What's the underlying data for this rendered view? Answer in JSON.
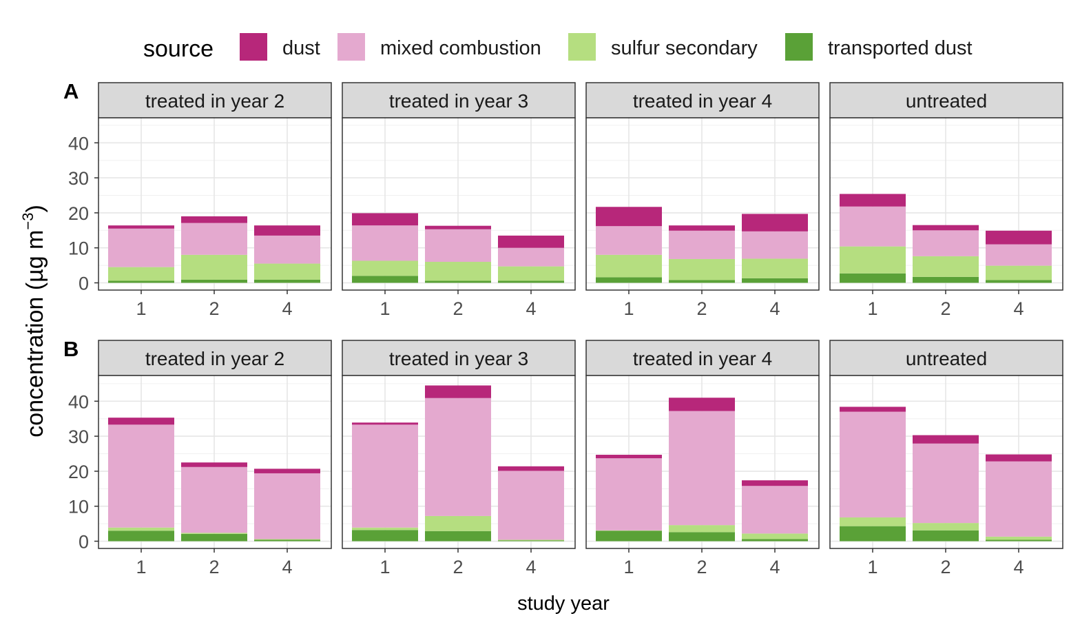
{
  "legend": {
    "title": "source",
    "items": [
      {
        "label": "dust",
        "color": "#b7277a"
      },
      {
        "label": "mixed combustion",
        "color": "#e4a9cf"
      },
      {
        "label": "sulfur secondary",
        "color": "#b5de80"
      },
      {
        "label": "transported dust",
        "color": "#5aa137"
      }
    ]
  },
  "xlabel": "study year",
  "ylabel_main": "concentration (µg m",
  "ylabel_sup": "−3",
  "ylabel_close": ")",
  "chart_data": [
    {
      "type": "bar",
      "stacked": true,
      "row_label": "A",
      "ylim": [
        0,
        45
      ],
      "yticks": [
        0,
        10,
        20,
        30,
        40
      ],
      "xlabel": "study year",
      "categories": [
        "1",
        "2",
        "4"
      ],
      "panels": [
        {
          "title": "treated in year 2",
          "series": [
            {
              "name": "transported dust",
              "values": [
                0.6,
                0.9,
                0.9
              ]
            },
            {
              "name": "sulfur secondary",
              "values": [
                3.9,
                7.1,
                4.6
              ]
            },
            {
              "name": "mixed combustion",
              "values": [
                11.0,
                9.1,
                8.0
              ]
            },
            {
              "name": "dust",
              "values": [
                0.9,
                1.9,
                2.9
              ]
            }
          ]
        },
        {
          "title": "treated in year 3",
          "series": [
            {
              "name": "transported dust",
              "values": [
                2.0,
                0.6,
                0.6
              ]
            },
            {
              "name": "sulfur secondary",
              "values": [
                4.3,
                5.4,
                4.1
              ]
            },
            {
              "name": "mixed combustion",
              "values": [
                10.1,
                9.3,
                5.3
              ]
            },
            {
              "name": "dust",
              "values": [
                3.5,
                1.0,
                3.5
              ]
            }
          ]
        },
        {
          "title": "treated in year 4",
          "series": [
            {
              "name": "transported dust",
              "values": [
                1.6,
                0.8,
                1.3
              ]
            },
            {
              "name": "sulfur secondary",
              "values": [
                6.4,
                6.0,
                5.6
              ]
            },
            {
              "name": "mixed combustion",
              "values": [
                8.2,
                8.1,
                7.8
              ]
            },
            {
              "name": "dust",
              "values": [
                5.5,
                1.5,
                5.0
              ]
            }
          ]
        },
        {
          "title": "untreated",
          "series": [
            {
              "name": "transported dust",
              "values": [
                2.7,
                1.7,
                0.8
              ]
            },
            {
              "name": "sulfur secondary",
              "values": [
                7.7,
                5.9,
                4.1
              ]
            },
            {
              "name": "mixed combustion",
              "values": [
                11.4,
                7.4,
                6.1
              ]
            },
            {
              "name": "dust",
              "values": [
                3.6,
                1.5,
                3.9
              ]
            }
          ]
        }
      ]
    },
    {
      "type": "bar",
      "stacked": true,
      "row_label": "B",
      "ylim": [
        0,
        45
      ],
      "yticks": [
        0,
        10,
        20,
        30,
        40
      ],
      "xlabel": "study year",
      "categories": [
        "1",
        "2",
        "4"
      ],
      "panels": [
        {
          "title": "treated in year 2",
          "series": [
            {
              "name": "transported dust",
              "values": [
                3.0,
                2.1,
                0.4
              ]
            },
            {
              "name": "sulfur secondary",
              "values": [
                0.9,
                0.3,
                0.2
              ]
            },
            {
              "name": "mixed combustion",
              "values": [
                29.4,
                18.8,
                18.8
              ]
            },
            {
              "name": "dust",
              "values": [
                2.0,
                1.3,
                1.3
              ]
            }
          ]
        },
        {
          "title": "treated in year 3",
          "series": [
            {
              "name": "transported dust",
              "values": [
                3.2,
                2.9,
                0.2
              ]
            },
            {
              "name": "sulfur secondary",
              "values": [
                0.7,
                4.3,
                0.2
              ]
            },
            {
              "name": "mixed combustion",
              "values": [
                29.4,
                33.7,
                19.7
              ]
            },
            {
              "name": "dust",
              "values": [
                0.6,
                3.6,
                1.3
              ]
            }
          ]
        },
        {
          "title": "treated in year 4",
          "series": [
            {
              "name": "transported dust",
              "values": [
                3.0,
                2.6,
                0.6
              ]
            },
            {
              "name": "sulfur secondary",
              "values": [
                0.1,
                2.0,
                1.6
              ]
            },
            {
              "name": "mixed combustion",
              "values": [
                20.6,
                32.6,
                13.6
              ]
            },
            {
              "name": "dust",
              "values": [
                1.0,
                3.8,
                1.6
              ]
            }
          ]
        },
        {
          "title": "untreated",
          "series": [
            {
              "name": "transported dust",
              "values": [
                4.3,
                3.1,
                0.4
              ]
            },
            {
              "name": "sulfur secondary",
              "values": [
                2.5,
                2.1,
                0.9
              ]
            },
            {
              "name": "mixed combustion",
              "values": [
                30.2,
                22.7,
                21.5
              ]
            },
            {
              "name": "dust",
              "values": [
                1.4,
                2.4,
                2.0
              ]
            }
          ]
        }
      ]
    }
  ]
}
